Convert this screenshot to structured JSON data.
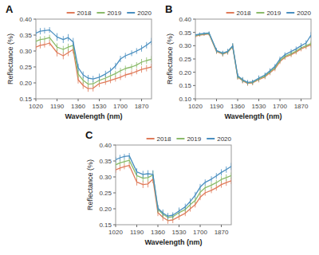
{
  "chart_data": [
    {
      "type": "line",
      "title": "A",
      "xlabel": "Wavelength (nm)",
      "ylabel": "Reflectance (%)",
      "x": [
        1020,
        1055,
        1090,
        1130,
        1190,
        1240,
        1280,
        1320,
        1360,
        1400,
        1440,
        1480,
        1530,
        1580,
        1620,
        1660,
        1700,
        1740,
        1790,
        1830,
        1870,
        1910,
        1950
      ],
      "series": [
        {
          "name": "2018",
          "color": "#E07B5A",
          "values": [
            0.312,
            0.318,
            0.32,
            0.325,
            0.295,
            0.285,
            0.295,
            0.305,
            0.21,
            0.192,
            0.182,
            0.183,
            0.198,
            0.203,
            0.208,
            0.213,
            0.218,
            0.225,
            0.23,
            0.236,
            0.242,
            0.246,
            0.25
          ],
          "errors": [
            0.01,
            0.01,
            0.009,
            0.009,
            0.012,
            0.011,
            0.011,
            0.013,
            0.012,
            0.011,
            0.01,
            0.01,
            0.011,
            0.009,
            0.009,
            0.009,
            0.009,
            0.009,
            0.009,
            0.009,
            0.01,
            0.01,
            0.01
          ]
        },
        {
          "name": "2019",
          "color": "#8BBB6A",
          "values": [
            0.33,
            0.336,
            0.338,
            0.342,
            0.312,
            0.305,
            0.312,
            0.318,
            0.228,
            0.208,
            0.196,
            0.197,
            0.208,
            0.215,
            0.222,
            0.229,
            0.238,
            0.245,
            0.25,
            0.256,
            0.265,
            0.27,
            0.274
          ],
          "errors": [
            0.01,
            0.01,
            0.009,
            0.009,
            0.012,
            0.011,
            0.011,
            0.013,
            0.012,
            0.011,
            0.01,
            0.01,
            0.011,
            0.009,
            0.009,
            0.009,
            0.009,
            0.009,
            0.009,
            0.009,
            0.01,
            0.01,
            0.01
          ]
        },
        {
          "name": "2020",
          "color": "#4A8FC0",
          "values": [
            0.356,
            0.362,
            0.364,
            0.366,
            0.344,
            0.336,
            0.342,
            0.328,
            0.248,
            0.225,
            0.215,
            0.212,
            0.218,
            0.228,
            0.238,
            0.253,
            0.275,
            0.285,
            0.293,
            0.3,
            0.308,
            0.318,
            0.33
          ],
          "errors": [
            0.01,
            0.01,
            0.009,
            0.009,
            0.012,
            0.011,
            0.011,
            0.013,
            0.012,
            0.011,
            0.01,
            0.01,
            0.011,
            0.01,
            0.01,
            0.01,
            0.01,
            0.009,
            0.009,
            0.009,
            0.01,
            0.01,
            0.011
          ]
        }
      ],
      "xlim": [
        1020,
        1950
      ],
      "xticks": [
        1020,
        1190,
        1360,
        1530,
        1700,
        1870
      ],
      "ylim": [
        0.15,
        0.4
      ],
      "yticks": [
        0.15,
        {
          "value": 0.2,
          "label": "0.20"
        },
        0.25,
        {
          "value": 0.3,
          "label": "0.30"
        },
        0.35,
        {
          "value": 0.4,
          "label": "0.40"
        }
      ],
      "grid": false,
      "legend": "upper right"
    },
    {
      "type": "line",
      "title": "B",
      "xlabel": "Wavelength (nm)",
      "ylabel": "Reflectance (%)",
      "x": [
        1020,
        1055,
        1090,
        1130,
        1190,
        1240,
        1280,
        1320,
        1360,
        1400,
        1440,
        1480,
        1530,
        1580,
        1620,
        1660,
        1700,
        1740,
        1790,
        1830,
        1870,
        1910,
        1950
      ],
      "series": [
        {
          "name": "2018",
          "color": "#E07B5A",
          "values": [
            0.336,
            0.34,
            0.342,
            0.344,
            0.278,
            0.268,
            0.275,
            0.296,
            0.182,
            0.168,
            0.158,
            0.16,
            0.172,
            0.183,
            0.198,
            0.213,
            0.24,
            0.256,
            0.266,
            0.276,
            0.288,
            0.296,
            0.303
          ],
          "errors": [
            0.006,
            0.006,
            0.005,
            0.006,
            0.009,
            0.009,
            0.009,
            0.011,
            0.01,
            0.01,
            0.009,
            0.009,
            0.01,
            0.009,
            0.009,
            0.009,
            0.009,
            0.009,
            0.009,
            0.009,
            0.009,
            0.009,
            0.01
          ]
        },
        {
          "name": "2019",
          "color": "#8BBB6A",
          "values": [
            0.338,
            0.342,
            0.344,
            0.346,
            0.28,
            0.27,
            0.277,
            0.298,
            0.184,
            0.17,
            0.16,
            0.162,
            0.175,
            0.186,
            0.202,
            0.217,
            0.244,
            0.26,
            0.27,
            0.28,
            0.292,
            0.3,
            0.308
          ],
          "errors": [
            0.006,
            0.006,
            0.005,
            0.006,
            0.009,
            0.009,
            0.009,
            0.01,
            0.01,
            0.01,
            0.009,
            0.009,
            0.01,
            0.009,
            0.009,
            0.009,
            0.009,
            0.009,
            0.009,
            0.009,
            0.009,
            0.009,
            0.01
          ]
        },
        {
          "name": "2020",
          "color": "#4A8FC0",
          "values": [
            0.34,
            0.344,
            0.346,
            0.348,
            0.282,
            0.272,
            0.279,
            0.3,
            0.187,
            0.172,
            0.162,
            0.164,
            0.178,
            0.19,
            0.206,
            0.222,
            0.25,
            0.266,
            0.278,
            0.288,
            0.3,
            0.31,
            0.34
          ],
          "errors": [
            0.006,
            0.006,
            0.005,
            0.006,
            0.009,
            0.009,
            0.009,
            0.01,
            0.01,
            0.01,
            0.009,
            0.008,
            0.01,
            0.009,
            0.009,
            0.009,
            0.009,
            0.009,
            0.009,
            0.009,
            0.01,
            0.01,
            0.011
          ]
        }
      ],
      "xlim": [
        1020,
        1950
      ],
      "xticks": [
        1020,
        1190,
        1360,
        1530,
        1700,
        1870
      ],
      "ylim": [
        0.1,
        0.4
      ],
      "yticks": [
        {
          "value": 0.1,
          "label": "0.10"
        },
        0.15,
        {
          "value": 0.2,
          "label": "0.20"
        },
        0.25,
        {
          "value": 0.3,
          "label": "0.30"
        },
        0.35,
        {
          "value": 0.4,
          "label": "0.40"
        }
      ],
      "grid": false,
      "legend": "upper right"
    },
    {
      "type": "line",
      "title": "C",
      "xlabel": "Wavelength (nm)",
      "ylabel": "Reflectance (%)",
      "x": [
        1020,
        1055,
        1090,
        1130,
        1190,
        1240,
        1280,
        1320,
        1360,
        1400,
        1440,
        1480,
        1530,
        1580,
        1620,
        1660,
        1700,
        1740,
        1790,
        1830,
        1870,
        1910,
        1950
      ],
      "series": [
        {
          "name": "2018",
          "color": "#E07B5A",
          "values": [
            0.322,
            0.328,
            0.332,
            0.336,
            0.284,
            0.276,
            0.278,
            0.293,
            0.188,
            0.173,
            0.163,
            0.165,
            0.176,
            0.186,
            0.2,
            0.213,
            0.236,
            0.25,
            0.258,
            0.266,
            0.276,
            0.282,
            0.288
          ],
          "errors": [
            0.009,
            0.009,
            0.008,
            0.009,
            0.011,
            0.011,
            0.011,
            0.013,
            0.011,
            0.011,
            0.01,
            0.01,
            0.011,
            0.009,
            0.009,
            0.009,
            0.009,
            0.009,
            0.009,
            0.009,
            0.01,
            0.01,
            0.01
          ]
        },
        {
          "name": "2019",
          "color": "#8BBB6A",
          "values": [
            0.338,
            0.344,
            0.348,
            0.352,
            0.304,
            0.296,
            0.298,
            0.306,
            0.198,
            0.183,
            0.173,
            0.175,
            0.188,
            0.198,
            0.213,
            0.226,
            0.252,
            0.266,
            0.274,
            0.282,
            0.292,
            0.298,
            0.304
          ],
          "errors": [
            0.009,
            0.009,
            0.008,
            0.009,
            0.011,
            0.011,
            0.011,
            0.013,
            0.011,
            0.011,
            0.01,
            0.01,
            0.011,
            0.009,
            0.009,
            0.009,
            0.009,
            0.009,
            0.009,
            0.009,
            0.01,
            0.01,
            0.01
          ]
        },
        {
          "name": "2020",
          "color": "#4A8FC0",
          "values": [
            0.354,
            0.36,
            0.364,
            0.366,
            0.316,
            0.308,
            0.31,
            0.308,
            0.202,
            0.187,
            0.177,
            0.18,
            0.193,
            0.206,
            0.223,
            0.243,
            0.268,
            0.283,
            0.293,
            0.303,
            0.314,
            0.323,
            0.333
          ],
          "errors": [
            0.009,
            0.009,
            0.008,
            0.009,
            0.011,
            0.011,
            0.011,
            0.013,
            0.011,
            0.011,
            0.01,
            0.009,
            0.011,
            0.01,
            0.01,
            0.01,
            0.01,
            0.009,
            0.009,
            0.009,
            0.01,
            0.01,
            0.011
          ]
        }
      ],
      "xlim": [
        1020,
        1950
      ],
      "xticks": [
        1020,
        1190,
        1360,
        1530,
        1700,
        1870
      ],
      "ylim": [
        0.15,
        0.4
      ],
      "yticks": [
        0.15,
        {
          "value": 0.2,
          "label": "0.20"
        },
        0.25,
        {
          "value": 0.3,
          "label": "0.30"
        },
        0.35,
        {
          "value": 0.4,
          "label": "0.40"
        }
      ],
      "grid": false,
      "legend": "upper right"
    }
  ]
}
